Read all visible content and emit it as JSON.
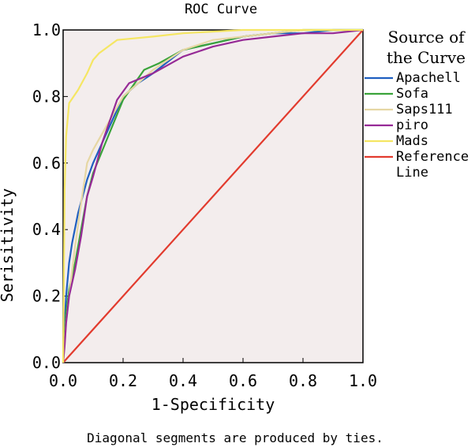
{
  "chart_data": {
    "type": "line",
    "title": "ROC Curve",
    "xlabel": "1-Specificity",
    "ylabel": "Serisitivity",
    "xlim": [
      0,
      1
    ],
    "ylim": [
      0,
      1
    ],
    "x_ticks": [
      "0.0",
      "0.2",
      "0.4",
      "0.6",
      "0.8",
      "1.0"
    ],
    "y_ticks": [
      "0.0",
      "0.2",
      "0.4",
      "0.6",
      "0.8",
      "1.0"
    ],
    "grid": false,
    "legend_title": [
      "Source of",
      "the Curve"
    ],
    "legend_position": "right",
    "footnote": "Diagonal segments are produced by ties.",
    "series": [
      {
        "name": "Apachell",
        "color": "#1f5fc0",
        "x": [
          0,
          0.005,
          0.01,
          0.02,
          0.03,
          0.05,
          0.08,
          0.1,
          0.15,
          0.2,
          0.25,
          0.3,
          0.4,
          0.5,
          0.6,
          0.7,
          0.8,
          0.9,
          1
        ],
        "y": [
          0,
          0.12,
          0.2,
          0.3,
          0.36,
          0.45,
          0.55,
          0.6,
          0.7,
          0.8,
          0.84,
          0.87,
          0.94,
          0.96,
          0.98,
          0.99,
          0.99,
          1,
          1
        ]
      },
      {
        "name": "Sofa",
        "color": "#3aa33a",
        "x": [
          0,
          0.005,
          0.01,
          0.02,
          0.04,
          0.06,
          0.08,
          0.1,
          0.15,
          0.2,
          0.27,
          0.32,
          0.4,
          0.5,
          0.6,
          0.7,
          0.8,
          0.9,
          1
        ],
        "y": [
          0,
          0.07,
          0.15,
          0.22,
          0.3,
          0.4,
          0.5,
          0.57,
          0.68,
          0.79,
          0.88,
          0.9,
          0.94,
          0.96,
          0.98,
          0.99,
          1,
          1,
          1
        ]
      },
      {
        "name": "Saps111",
        "color": "#e6d7a3",
        "x": [
          0,
          0.005,
          0.01,
          0.02,
          0.04,
          0.06,
          0.08,
          0.1,
          0.15,
          0.2,
          0.3,
          0.4,
          0.5,
          0.6,
          0.7,
          0.8,
          0.9,
          1
        ],
        "y": [
          0,
          0.05,
          0.12,
          0.2,
          0.35,
          0.48,
          0.6,
          0.64,
          0.72,
          0.8,
          0.88,
          0.94,
          0.97,
          0.98,
          0.99,
          1,
          1,
          1
        ]
      },
      {
        "name": "piro",
        "color": "#962a96",
        "x": [
          0,
          0.005,
          0.01,
          0.02,
          0.04,
          0.06,
          0.08,
          0.1,
          0.13,
          0.18,
          0.22,
          0.3,
          0.4,
          0.5,
          0.6,
          0.7,
          0.8,
          0.9,
          1
        ],
        "y": [
          0,
          0.05,
          0.12,
          0.2,
          0.28,
          0.38,
          0.5,
          0.56,
          0.66,
          0.79,
          0.84,
          0.87,
          0.92,
          0.95,
          0.97,
          0.98,
          0.99,
          0.99,
          1
        ]
      },
      {
        "name": "Mads",
        "color": "#f5e663",
        "x": [
          0,
          0.005,
          0.01,
          0.02,
          0.05,
          0.08,
          0.1,
          0.12,
          0.18,
          0.3,
          0.4,
          0.6,
          0.8,
          1
        ],
        "y": [
          0,
          0.52,
          0.68,
          0.78,
          0.82,
          0.87,
          0.91,
          0.93,
          0.97,
          0.98,
          0.99,
          1,
          1,
          1
        ]
      },
      {
        "name": "Reference\nLine",
        "color": "#e23b2e",
        "x": [
          0,
          1
        ],
        "y": [
          0,
          1
        ]
      }
    ]
  }
}
